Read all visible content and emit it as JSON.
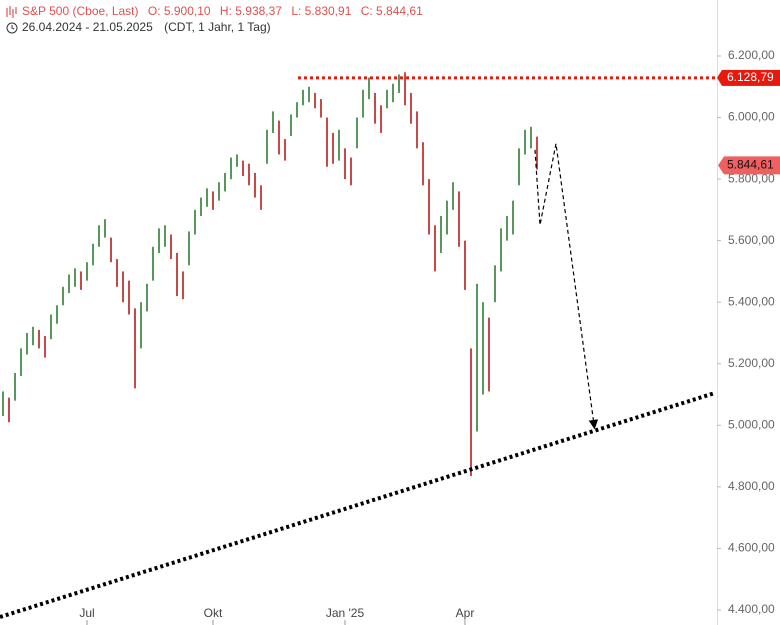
{
  "chart_data": {
    "type": "ohlc",
    "title": "S&P 500 (Cboe, Last)",
    "ohlc_labels": [
      "O: 5.900,10",
      "H: 5.938,37",
      "L: 5.830,91",
      "C: 5.844,61"
    ],
    "period": "26.04.2024 - 21.05.2025",
    "subtitle": "(CDT, 1 Jahr, 1 Tag)",
    "categories": [
      null,
      null,
      null,
      null,
      null,
      null,
      null,
      null,
      null,
      null,
      null,
      null,
      null,
      null,
      "Jul",
      null,
      null,
      null,
      null,
      null,
      null,
      null,
      null,
      null,
      null,
      null,
      null,
      null,
      null,
      null,
      null,
      null,
      null,
      null,
      null,
      "Okt",
      null,
      null,
      null,
      null,
      null,
      null,
      null,
      null,
      null,
      null,
      null,
      null,
      null,
      null,
      null,
      null,
      null,
      null,
      null,
      null,
      null,
      "Jan '25",
      null,
      null,
      null,
      null,
      null,
      null,
      null,
      null,
      null,
      null,
      null,
      null,
      null,
      null,
      null,
      null,
      null,
      null,
      null,
      "Apr",
      null,
      null,
      null,
      null,
      null,
      null,
      null,
      null,
      null,
      null,
      null,
      null
    ],
    "low": [
      5030,
      5010,
      5080,
      5160,
      5230,
      5260,
      5250,
      5220,
      5280,
      5330,
      5390,
      5430,
      5450,
      5440,
      5470,
      5520,
      5580,
      5610,
      5530,
      5450,
      5400,
      5360,
      5120,
      5250,
      5370,
      5470,
      5560,
      5580,
      5540,
      5420,
      5410,
      5520,
      5620,
      5680,
      5710,
      5700,
      5730,
      5760,
      5800,
      5840,
      5810,
      5780,
      5740,
      5700,
      5850,
      5950,
      5880,
      5860,
      5940,
      6000,
      6040,
      6050,
      6030,
      6000,
      5840,
      5850,
      5860,
      5800,
      5780,
      5900,
      6000,
      6060,
      5980,
      5950,
      6030,
      6050,
      6080,
      6040,
      5980,
      5900,
      5780,
      5620,
      5500,
      5560,
      5620,
      5700,
      5580,
      5440,
      4835,
      4980,
      5100,
      5110,
      5400,
      5500,
      5600,
      5620,
      5780,
      5880,
      5900,
      5831
    ],
    "high": [
      5110,
      5090,
      5170,
      5250,
      5300,
      5320,
      5310,
      5290,
      5360,
      5390,
      5450,
      5490,
      5510,
      5500,
      5530,
      5590,
      5650,
      5670,
      5610,
      5540,
      5500,
      5470,
      5380,
      5400,
      5460,
      5580,
      5640,
      5650,
      5620,
      5560,
      5500,
      5630,
      5700,
      5740,
      5770,
      5760,
      5790,
      5820,
      5870,
      5880,
      5860,
      5850,
      5820,
      5780,
      5960,
      6020,
      5990,
      5930,
      6010,
      6050,
      6090,
      6100,
      6080,
      6060,
      6000,
      5950,
      5960,
      5900,
      5870,
      6000,
      6090,
      6130,
      6080,
      6040,
      6090,
      6110,
      6140,
      6147,
      6080,
      6020,
      5920,
      5800,
      5650,
      5680,
      5730,
      5790,
      5760,
      5600,
      5250,
      5460,
      5400,
      5350,
      5520,
      5640,
      5680,
      5730,
      5900,
      5960,
      5970,
      5938
    ],
    "colors": {
      "up": "#2e7d32",
      "down": "#b71c1c"
    },
    "ylim": [
      4351,
      6382
    ],
    "yticks": [
      {
        "value": 4400,
        "label": "4.400,00"
      },
      {
        "value": 4600,
        "label": "4.600,00"
      },
      {
        "value": 4800,
        "label": "4.800,00"
      },
      {
        "value": 5000,
        "label": "5.000,00"
      },
      {
        "value": 5200,
        "label": "5.200,00"
      },
      {
        "value": 5400,
        "label": "5.400,00"
      },
      {
        "value": 5600,
        "label": "5.600,00"
      },
      {
        "value": 5800,
        "label": "5.800,00"
      },
      {
        "value": 6000,
        "label": "6.000,00"
      },
      {
        "value": 6200,
        "label": "6.200,00"
      }
    ],
    "resistance": {
      "value": 6128.79,
      "label": "6.128,79",
      "color": "#e8190c"
    },
    "last": {
      "value": 5844.61,
      "label": "5.844,61",
      "color": "#f06060"
    },
    "trend_line": {
      "values": [
        4377,
        5105
      ],
      "color": "#000000"
    },
    "projection": {
      "values": [
        5895,
        5651,
        5915,
        5002
      ],
      "color": "#000000"
    }
  }
}
